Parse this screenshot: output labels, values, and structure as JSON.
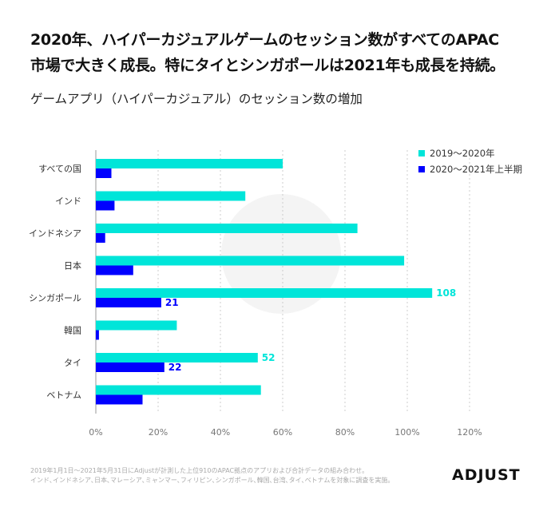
{
  "title_lines": [
    "2020年、ハイパーカジュアルゲームのセッション数がすべてのAPAC",
    "市場で大きく成長。特にタイとシンガポールは2021年も成長を持続。"
  ],
  "chart_data": {
    "type": "bar",
    "orientation": "horizontal",
    "title": "ゲームアプリ（ハイパーカジュアル）のセッション数の増加",
    "categories": [
      "すべての国",
      "インド",
      "インドネシア",
      "日本",
      "シンガポール",
      "韓国",
      "タイ",
      "ベトナム"
    ],
    "series": [
      {
        "name": "2019〜2020年",
        "color": "#00e5d9",
        "values": [
          60,
          48,
          84,
          99,
          108,
          26,
          52,
          53
        ],
        "labels": [
          null,
          null,
          null,
          null,
          "108",
          null,
          "52",
          null
        ]
      },
      {
        "name": "2020〜2021年上半期",
        "color": "#0000ff",
        "values": [
          5,
          6,
          3,
          12,
          21,
          1,
          22,
          15
        ],
        "labels": [
          null,
          null,
          null,
          null,
          "21",
          null,
          "22",
          null
        ]
      }
    ],
    "xlim": [
      0,
      120
    ],
    "xticks": [
      "0%",
      "20%",
      "40%",
      "60%",
      "80%",
      "100%",
      "120%"
    ],
    "grid": true,
    "legend": "top-right"
  },
  "footnote": [
    "2019年1月1日～2021年5月31日にAdjustが計測した上位910のAPAC拠点のアプリおよび合計データの組み合わせ。",
    "インド､インドネシア､日本､マレーシア､ミャンマー､フィリピン､シンガポール､韓国､台湾､タイ､ベトナムを対象に調査を実施。"
  ],
  "logo": "ADJUST"
}
